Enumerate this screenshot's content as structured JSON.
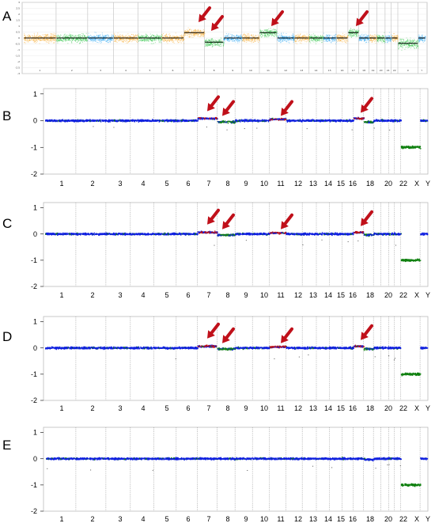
{
  "chart_data": [
    {
      "panel": "A",
      "type": "scatter",
      "y_ticks": [
        3,
        2.5,
        2,
        1.5,
        1,
        0.5,
        0,
        -0.5,
        -1,
        -1.5,
        -2,
        -2.5,
        -3
      ],
      "ylim": [
        -3,
        3
      ],
      "x_tick_labels": [
        "1",
        "2",
        "3",
        "4",
        "5",
        "6",
        "7",
        "8",
        "9",
        "10",
        "11",
        "12",
        "13",
        "14",
        "15",
        "16",
        "17",
        "18",
        "19",
        "20",
        "21",
        "22",
        "X",
        "Y"
      ],
      "segment_medians": [
        0,
        0,
        0,
        0,
        0,
        0,
        0.45,
        -0.35,
        0,
        0,
        0.45,
        0,
        0,
        0,
        0,
        0,
        0.45,
        0,
        0,
        0,
        0,
        0,
        -0.45,
        0
      ],
      "arrow_chromosomes": [
        "7",
        "8",
        "11",
        "17"
      ],
      "colors": {
        "odd": "#f5a623",
        "even": "#22c13c",
        "alt": "#1ea0f0",
        "median": "#000000",
        "arrow": "#c0101a"
      }
    },
    {
      "panel": "B",
      "type": "scatter",
      "y_ticks": [
        1,
        0,
        -1,
        -2
      ],
      "ylim": [
        -2,
        1.2
      ],
      "x_tick_labels": [
        "1",
        "2",
        "3",
        "4",
        "5",
        "6",
        "7",
        "8",
        "9",
        "10",
        "11",
        "12",
        "13",
        "14",
        "15",
        "16",
        "18",
        "20",
        "22",
        "X",
        "Y"
      ],
      "segment_values": [
        0,
        0,
        0,
        0,
        0,
        0,
        0.08,
        -0.05,
        0,
        0,
        0.05,
        0,
        0,
        0,
        0,
        0,
        0.08,
        -0.05,
        0,
        0,
        0,
        0,
        -1.0,
        0
      ],
      "arrow_chromosomes": [
        "7",
        "8",
        "11",
        "17"
      ],
      "colors": {
        "base": "#1020e0",
        "gain": "#c01010",
        "loss": "#108010",
        "arrow": "#c0101a"
      }
    },
    {
      "panel": "C",
      "type": "scatter",
      "y_ticks": [
        1,
        0,
        -1,
        -2
      ],
      "ylim": [
        -2,
        1.2
      ],
      "x_tick_labels": [
        "1",
        "2",
        "3",
        "4",
        "5",
        "6",
        "7",
        "8",
        "9",
        "10",
        "11",
        "12",
        "13",
        "14",
        "15",
        "16",
        "18",
        "20",
        "22",
        "X",
        "Y"
      ],
      "segment_values": [
        0,
        0,
        0,
        0,
        0,
        0,
        0.06,
        -0.04,
        0,
        0,
        0.04,
        0,
        0,
        0,
        0,
        0,
        0.06,
        -0.04,
        0,
        0,
        0,
        0,
        -1.0,
        0
      ],
      "arrow_chromosomes": [
        "7",
        "8",
        "11",
        "17"
      ],
      "colors": {
        "base": "#1020e0",
        "gain": "#c01010",
        "loss": "#108010",
        "arrow": "#c0101a"
      }
    },
    {
      "panel": "D",
      "type": "scatter",
      "y_ticks": [
        1,
        0,
        -1,
        -2
      ],
      "ylim": [
        -2,
        1.2
      ],
      "x_tick_labels": [
        "1",
        "2",
        "3",
        "4",
        "5",
        "6",
        "7",
        "8",
        "9",
        "10",
        "11",
        "12",
        "13",
        "14",
        "15",
        "16",
        "18",
        "20",
        "22",
        "X",
        "Y"
      ],
      "segment_values": [
        0,
        0,
        0,
        0,
        0,
        0,
        0.06,
        -0.04,
        0,
        0,
        0.04,
        0,
        0,
        0,
        0,
        0,
        0.06,
        -0.04,
        0,
        0,
        0,
        0,
        -1.0,
        0
      ],
      "arrow_chromosomes": [
        "7",
        "8",
        "11",
        "17"
      ],
      "colors": {
        "base": "#1020e0",
        "gain": "#c01010",
        "loss": "#108010",
        "arrow": "#c0101a"
      }
    },
    {
      "panel": "E",
      "type": "scatter",
      "y_ticks": [
        1,
        0,
        -1,
        -2
      ],
      "ylim": [
        -2,
        1.2
      ],
      "x_tick_labels": [
        "1",
        "2",
        "3",
        "4",
        "5",
        "6",
        "7",
        "8",
        "9",
        "10",
        "11",
        "12",
        "13",
        "14",
        "15",
        "16",
        "18",
        "20",
        "22",
        "X",
        "Y"
      ],
      "segment_values": [
        0,
        0,
        0,
        0,
        0,
        0,
        0,
        0,
        0,
        0,
        0,
        0,
        0,
        0,
        0,
        0,
        0,
        -0.03,
        0,
        0,
        0,
        0,
        -1.0,
        0
      ],
      "arrow_chromosomes": [],
      "colors": {
        "base": "#1020e0",
        "gain": "#c01010",
        "loss": "#108010",
        "arrow": "#c0101a"
      }
    }
  ]
}
